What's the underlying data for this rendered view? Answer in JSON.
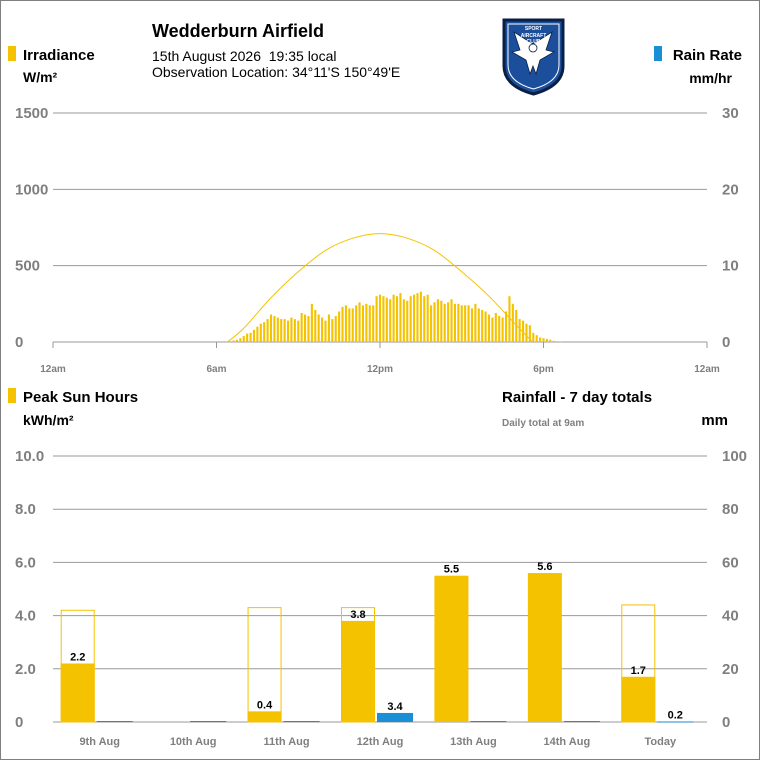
{
  "header": {
    "station_name": "Wedderburn Airfield",
    "datetime": "15th August 2026  19:35 local",
    "location": "Observation Location: 34°11'S 150°49'E",
    "logo_top_text": "SPORT",
    "logo_mid_text": "AIRCRAFT",
    "logo_bottom_text": "CLUB"
  },
  "colors": {
    "irradiance": "#f5c200",
    "rain": "#1a8fd6",
    "gridline": "#9a9a9a",
    "axis_text": "#7f7f7f"
  },
  "chart_data": [
    {
      "type": "bar",
      "title": "",
      "left_axis": {
        "label": "Irradiance",
        "unit": "W/m²",
        "ticks": [
          0,
          500,
          1000,
          1500
        ],
        "ylim": [
          0,
          1500
        ]
      },
      "right_axis": {
        "label": "Rain Rate",
        "unit": "mm/hr",
        "ticks": [
          0,
          10,
          20,
          30
        ],
        "ylim": [
          0,
          30
        ]
      },
      "x_tick_labels": [
        "12am",
        "6am",
        "12pm",
        "6pm",
        "12am"
      ],
      "x_range_hours": [
        0,
        24
      ],
      "series": [
        {
          "name": "Irradiance",
          "kind": "bars",
          "start_hour": 6.5,
          "step_hours": 0.125,
          "values": [
            5,
            10,
            15,
            25,
            40,
            55,
            60,
            80,
            100,
            120,
            130,
            150,
            180,
            170,
            160,
            150,
            150,
            140,
            160,
            150,
            140,
            190,
            180,
            170,
            250,
            210,
            180,
            160,
            140,
            180,
            150,
            170,
            200,
            230,
            240,
            220,
            220,
            240,
            260,
            240,
            250,
            240,
            240,
            300,
            310,
            300,
            290,
            280,
            310,
            300,
            320,
            280,
            270,
            300,
            310,
            320,
            330,
            300,
            310,
            240,
            260,
            280,
            270,
            250,
            260,
            280,
            250,
            250,
            240,
            240,
            240,
            220,
            250,
            220,
            210,
            200,
            180,
            160,
            190,
            170,
            160,
            200,
            300,
            250,
            210,
            150,
            140,
            120,
            110,
            60,
            45,
            30,
            25,
            20,
            15,
            8,
            5,
            4
          ]
        },
        {
          "name": "Clear sky irradiance",
          "kind": "line",
          "points": [
            [
              6.4,
              0
            ],
            [
              7,
              90
            ],
            [
              8,
              290
            ],
            [
              9,
              460
            ],
            [
              10,
              600
            ],
            [
              11,
              680
            ],
            [
              12,
              710
            ],
            [
              13,
              680
            ],
            [
              14,
              600
            ],
            [
              15,
              460
            ],
            [
              16,
              300
            ],
            [
              17,
              110
            ],
            [
              17.6,
              0
            ]
          ]
        },
        {
          "name": "Rain Rate",
          "kind": "bars",
          "values": []
        }
      ]
    },
    {
      "type": "bar",
      "left_axis": {
        "label": "Peak Sun Hours",
        "unit": "kWh/m²",
        "ticks": [
          "0",
          "2.0",
          "4.0",
          "6.0",
          "8.0",
          "10.0"
        ],
        "ylim": [
          0,
          10
        ]
      },
      "right_axis": {
        "label": "Rainfall - 7 day totals",
        "note": "Daily total at 9am",
        "unit": "mm",
        "ticks": [
          "0",
          "20",
          "40",
          "60",
          "80",
          "100"
        ],
        "ylim": [
          0,
          100
        ]
      },
      "categories": [
        "9th Aug",
        "10th Aug",
        "11th Aug",
        "12th Aug",
        "13th Aug",
        "14th Aug",
        "Today"
      ],
      "series": [
        {
          "name": "Peak Sun Hours",
          "values": [
            2.2,
            0,
            0.4,
            3.8,
            5.5,
            5.6,
            1.7
          ],
          "labels": [
            "2.2",
            "",
            "0.4",
            "3.8",
            "5.5",
            "5.6",
            "1.7"
          ]
        },
        {
          "name": "Potential Sun Hours",
          "values": [
            4.2,
            0,
            4.3,
            4.3,
            0,
            0,
            4.4
          ]
        },
        {
          "name": "Rainfall",
          "values": [
            0,
            0,
            0,
            3.4,
            0,
            0,
            0.2
          ],
          "labels": [
            "",
            "",
            "",
            "3.4",
            "",
            "",
            "0.2"
          ]
        }
      ]
    }
  ]
}
